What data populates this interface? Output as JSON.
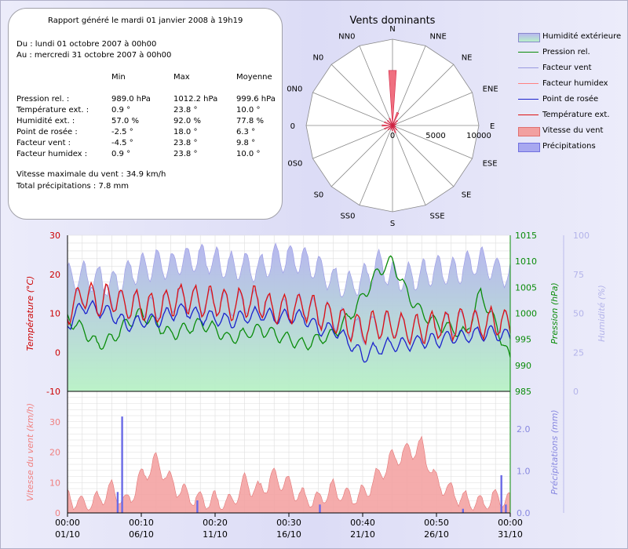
{
  "report": {
    "title": "Rapport généré le mardi 01 janvier 2008 à 19h19",
    "from": "Du : lundi 01 octobre 2007 à 00h00",
    "to": "Au : mercredi 31 octobre 2007 à 00h00",
    "col_min": "Min",
    "col_max": "Max",
    "col_avg": "Moyenne",
    "rows": [
      {
        "label": "Pression rel. :",
        "min": "989.0 hPa",
        "max": "1012.2 hPa",
        "avg": "999.6 hPa"
      },
      {
        "label": "Température ext. :",
        "min": "0.9 °",
        "max": "23.8 °",
        "avg": "10.0 °"
      },
      {
        "label": "Humidité ext. :",
        "min": "57.0 %",
        "max": "92.0 %",
        "avg": "77.8 %"
      },
      {
        "label": "Point de rosée :",
        "min": "-2.5 °",
        "max": "18.0 °",
        "avg": "6.3 °"
      },
      {
        "label": "Facteur vent :",
        "min": "-4.5 °",
        "max": "23.8 °",
        "avg": "9.8 °"
      },
      {
        "label": "Facteur humidex :",
        "min": "0.9 °",
        "max": "23.8 °",
        "avg": "10.0 °"
      }
    ],
    "max_wind": "Vitesse maximale du vent : 34.9 km/h",
    "total_rain": "Total précipitations : 7.8 mm"
  },
  "colors": {
    "humidity_fill": "#b8f0c8",
    "humidity_wave": "#c8c8f4",
    "pressure": "#0a8c0a",
    "temperature": "#dd1111",
    "dew_point": "#1b22cc",
    "wind_factor": "#9a9ae0",
    "humidex": "#ff8080",
    "wind_speed": "#f08a8a",
    "rain": "#6666e0"
  },
  "chart_data": [
    {
      "type": "radar",
      "title": "Vents dominants",
      "directions": [
        "N",
        "NNE",
        "NE",
        "ENE",
        "E",
        "ESE",
        "SE",
        "SSE",
        "S",
        "SS0",
        "S0",
        "0S0",
        "0",
        "0N0",
        "N0",
        "NN0"
      ],
      "radial_ticks": [
        "0",
        "5000",
        "10000"
      ],
      "rmax": 10000,
      "values": [
        6400,
        1600,
        800,
        500,
        300,
        400,
        700,
        900,
        600,
        500,
        700,
        1000,
        1200,
        1000,
        800,
        900
      ]
    },
    {
      "type": "line",
      "legend": [
        "Humidité extérieure",
        "Pression rel.",
        "Facteur vent",
        "Facteur humidex",
        "Point de rosée",
        "Température ext.",
        "Vitesse du vent",
        "Précipitations"
      ],
      "legend_placement": "top-right",
      "top_panel": {
        "ylabel_left": "Température (°C)",
        "ylim_left": [
          -10,
          30
        ],
        "yticks_left": [
          "-10",
          "0",
          "10",
          "20",
          "30"
        ],
        "ylabel_right1": "Pression (hPa)",
        "ylim_right1": [
          985,
          1015
        ],
        "yticks_right1": [
          "985",
          "990",
          "995",
          "1000",
          "1005",
          "1010",
          "1015"
        ],
        "ylabel_right2": "Humidité (%)",
        "ylim_right2": [
          0,
          100
        ],
        "yticks_right2": [
          "0",
          "25",
          "50",
          "75",
          "100"
        ],
        "series": [
          {
            "name": "Humidité extérieure",
            "axis": "humidity",
            "values": [
              73,
              74,
              72,
              68,
              75,
              79,
              82,
              80,
              84,
              86,
              83,
              80,
              81,
              79,
              85,
              86,
              84,
              78,
              71,
              67,
              72,
              82,
              74,
              73,
              75,
              78,
              76,
              80,
              84,
              78,
              74
            ]
          },
          {
            "name": "Pression rel.",
            "axis": "pressure",
            "values": [
              999,
              997,
              994,
              995,
              998,
              1000,
              998,
              996,
              997,
              998,
              997,
              995,
              996,
              997,
              996,
              995,
              994,
              995,
              996,
              999,
              1003,
              1008,
              1010,
              1004,
              1000,
              998,
              997,
              996,
              1004,
              998,
              991
            ]
          },
          {
            "name": "Température ext.",
            "axis": "temp",
            "values": [
              10,
              15,
              13,
              14,
              12,
              12,
              11,
              13,
              14,
              13,
              13,
              12,
              13,
              13,
              11,
              11,
              12,
              10,
              9,
              7,
              6,
              7,
              7,
              6,
              6,
              7,
              7,
              8,
              7,
              8,
              7
            ]
          },
          {
            "name": "Point de rosée",
            "axis": "temp",
            "values": [
              7,
              12,
              11,
              10,
              7,
              8,
              8,
              10,
              11,
              9,
              9,
              8,
              9,
              10,
              9,
              9,
              9,
              6,
              6,
              3,
              -1,
              1,
              2,
              2,
              3,
              3,
              4,
              4,
              5,
              5,
              4
            ]
          },
          {
            "name": "Facteur vent",
            "axis": "temp",
            "values": [
              10,
              15,
              13,
              14,
              12,
              12,
              11,
              13,
              14,
              13,
              13,
              12,
              13,
              13,
              11,
              11,
              12,
              10,
              9,
              7,
              5,
              7,
              7,
              6,
              6,
              7,
              7,
              8,
              7,
              8,
              7
            ]
          }
        ]
      },
      "bottom_panel": {
        "ylabel_left": "Vitesse du vent (km/h)",
        "ylim_left": [
          0,
          40
        ],
        "yticks_left": [
          "0",
          "10",
          "20",
          "30"
        ],
        "ylabel_right": "Précipitations (mm)",
        "ylim_right": [
          0,
          2.9
        ],
        "yticks_right": [
          "0.0",
          "1.0",
          "2.0"
        ],
        "series": [
          {
            "name": "Vitesse du vent",
            "axis": "wind",
            "values": [
              5,
              3,
              4,
              8,
              3,
              12,
              17,
              10,
              6,
              4,
              4,
              3,
              10,
              7,
              12,
              9,
              5,
              4,
              8,
              5,
              6,
              12,
              18,
              20,
              22,
              10,
              7,
              4,
              3,
              5,
              4
            ]
          },
          {
            "name": "Précipitations",
            "axis": "rain",
            "bars": [
              [
                3.7,
                2.3
              ],
              [
                3.4,
                0.5
              ],
              [
                8.8,
                0.3
              ],
              [
                17.1,
                0.2
              ],
              [
                26.8,
                0.1
              ],
              [
                29.4,
                0.9
              ],
              [
                29.7,
                0.2
              ]
            ]
          }
        ]
      },
      "x_ticks": [
        {
          "time": "00:00",
          "date": "01/10"
        },
        {
          "time": "00:10",
          "date": "06/10"
        },
        {
          "time": "00:20",
          "date": "11/10"
        },
        {
          "time": "00:30",
          "date": "16/10"
        },
        {
          "time": "00:40",
          "date": "21/10"
        },
        {
          "time": "00:50",
          "date": "26/10"
        },
        {
          "time": "00:00",
          "date": "31/10"
        }
      ]
    }
  ]
}
